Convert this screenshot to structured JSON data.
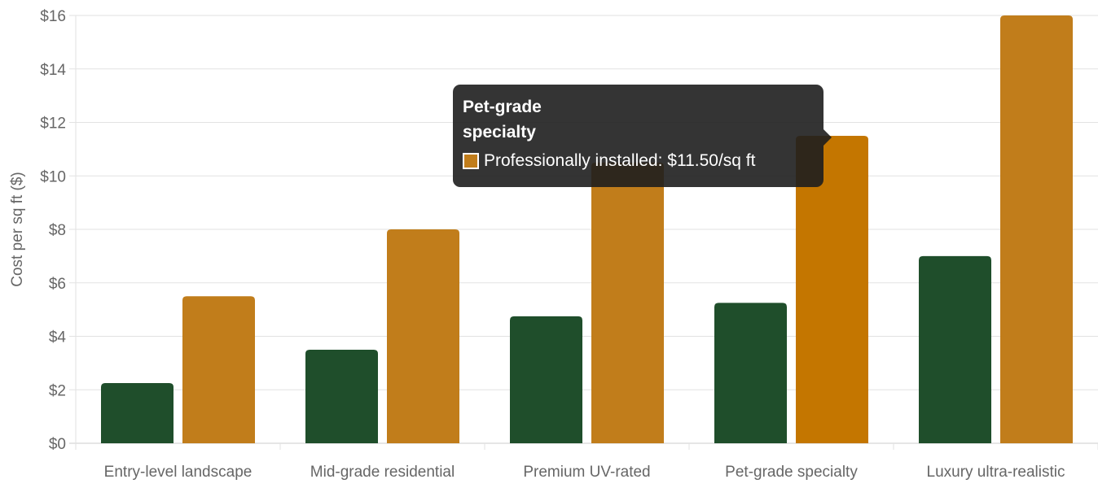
{
  "chart_data": {
    "type": "bar",
    "title": "",
    "xlabel": "",
    "ylabel": "Cost per sq ft ($)",
    "ylim": [
      0,
      16
    ],
    "yticks": [
      "$0",
      "$2",
      "$4",
      "$6",
      "$8",
      "$10",
      "$12",
      "$14",
      "$16"
    ],
    "categories": [
      "Entry-level landscape",
      "Mid-grade residential",
      "Premium UV-rated",
      "Pet-grade specialty",
      "Luxury ultra-realistic"
    ],
    "series": [
      {
        "name": "",
        "color": "#1f4e2b",
        "values": [
          2.25,
          3.5,
          4.75,
          5.25,
          7
        ]
      },
      {
        "name": "Professionally installed",
        "color": "#c17d1b",
        "values": [
          5.5,
          8,
          10.5,
          11.5,
          16
        ]
      }
    ],
    "grid": true,
    "hover_color": "#c47600"
  },
  "tooltip": {
    "title": "Pet-grade specialty",
    "line": "Professionally installed: $11.50/sq ft",
    "swatch_color": "#c17d1b"
  }
}
